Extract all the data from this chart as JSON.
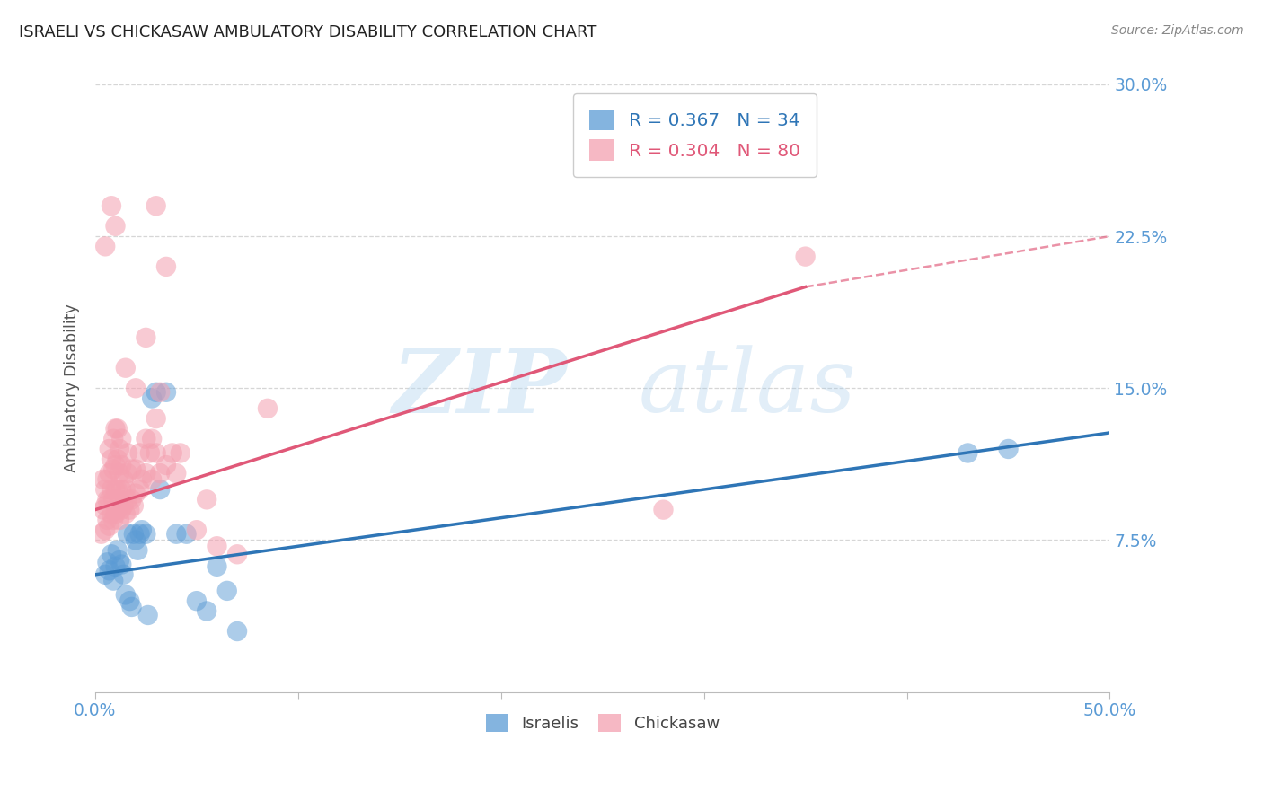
{
  "title": "ISRAELI VS CHICKASAW AMBULATORY DISABILITY CORRELATION CHART",
  "source": "Source: ZipAtlas.com",
  "ylabel": "Ambulatory Disability",
  "watermark_zip": "ZIP",
  "watermark_atlas": "atlas",
  "xlim": [
    0.0,
    0.5
  ],
  "ylim": [
    0.0,
    0.3
  ],
  "yticks": [
    0.075,
    0.15,
    0.225,
    0.3
  ],
  "ytick_labels": [
    "7.5%",
    "15.0%",
    "22.5%",
    "30.0%"
  ],
  "xticks": [
    0.0,
    0.1,
    0.2,
    0.3,
    0.4,
    0.5
  ],
  "xtick_labels": [
    "0.0%",
    "",
    "",
    "",
    "",
    "50.0%"
  ],
  "blue_R": 0.367,
  "blue_N": 34,
  "pink_R": 0.304,
  "pink_N": 80,
  "blue_color": "#5b9bd5",
  "pink_color": "#f4a0b0",
  "blue_line_color": "#2e75b6",
  "pink_line_color": "#e05878",
  "blue_scatter": [
    [
      0.005,
      0.058
    ],
    [
      0.006,
      0.064
    ],
    [
      0.007,
      0.06
    ],
    [
      0.008,
      0.068
    ],
    [
      0.009,
      0.055
    ],
    [
      0.01,
      0.062
    ],
    [
      0.011,
      0.07
    ],
    [
      0.012,
      0.065
    ],
    [
      0.013,
      0.063
    ],
    [
      0.014,
      0.058
    ],
    [
      0.015,
      0.048
    ],
    [
      0.016,
      0.078
    ],
    [
      0.017,
      0.045
    ],
    [
      0.018,
      0.042
    ],
    [
      0.019,
      0.078
    ],
    [
      0.02,
      0.075
    ],
    [
      0.021,
      0.07
    ],
    [
      0.022,
      0.078
    ],
    [
      0.023,
      0.08
    ],
    [
      0.025,
      0.078
    ],
    [
      0.026,
      0.038
    ],
    [
      0.028,
      0.145
    ],
    [
      0.03,
      0.148
    ],
    [
      0.032,
      0.1
    ],
    [
      0.035,
      0.148
    ],
    [
      0.04,
      0.078
    ],
    [
      0.045,
      0.078
    ],
    [
      0.05,
      0.045
    ],
    [
      0.055,
      0.04
    ],
    [
      0.06,
      0.062
    ],
    [
      0.065,
      0.05
    ],
    [
      0.07,
      0.03
    ],
    [
      0.43,
      0.118
    ],
    [
      0.45,
      0.12
    ]
  ],
  "pink_scatter": [
    [
      0.003,
      0.078
    ],
    [
      0.004,
      0.09
    ],
    [
      0.004,
      0.105
    ],
    [
      0.005,
      0.08
    ],
    [
      0.005,
      0.092
    ],
    [
      0.005,
      0.1
    ],
    [
      0.006,
      0.085
    ],
    [
      0.006,
      0.095
    ],
    [
      0.006,
      0.105
    ],
    [
      0.007,
      0.082
    ],
    [
      0.007,
      0.095
    ],
    [
      0.007,
      0.108
    ],
    [
      0.007,
      0.12
    ],
    [
      0.008,
      0.088
    ],
    [
      0.008,
      0.1
    ],
    [
      0.008,
      0.115
    ],
    [
      0.009,
      0.085
    ],
    [
      0.009,
      0.095
    ],
    [
      0.009,
      0.11
    ],
    [
      0.009,
      0.125
    ],
    [
      0.01,
      0.088
    ],
    [
      0.01,
      0.1
    ],
    [
      0.01,
      0.112
    ],
    [
      0.01,
      0.13
    ],
    [
      0.011,
      0.09
    ],
    [
      0.011,
      0.1
    ],
    [
      0.011,
      0.115
    ],
    [
      0.011,
      0.13
    ],
    [
      0.012,
      0.085
    ],
    [
      0.012,
      0.095
    ],
    [
      0.012,
      0.108
    ],
    [
      0.012,
      0.12
    ],
    [
      0.013,
      0.09
    ],
    [
      0.013,
      0.1
    ],
    [
      0.013,
      0.112
    ],
    [
      0.013,
      0.125
    ],
    [
      0.014,
      0.092
    ],
    [
      0.014,
      0.105
    ],
    [
      0.015,
      0.088
    ],
    [
      0.015,
      0.1
    ],
    [
      0.016,
      0.095
    ],
    [
      0.016,
      0.108
    ],
    [
      0.016,
      0.118
    ],
    [
      0.017,
      0.09
    ],
    [
      0.018,
      0.095
    ],
    [
      0.018,
      0.11
    ],
    [
      0.019,
      0.092
    ],
    [
      0.02,
      0.098
    ],
    [
      0.02,
      0.11
    ],
    [
      0.022,
      0.1
    ],
    [
      0.022,
      0.118
    ],
    [
      0.023,
      0.105
    ],
    [
      0.025,
      0.108
    ],
    [
      0.025,
      0.125
    ],
    [
      0.027,
      0.118
    ],
    [
      0.028,
      0.105
    ],
    [
      0.028,
      0.125
    ],
    [
      0.03,
      0.118
    ],
    [
      0.03,
      0.135
    ],
    [
      0.032,
      0.108
    ],
    [
      0.035,
      0.112
    ],
    [
      0.038,
      0.118
    ],
    [
      0.04,
      0.108
    ],
    [
      0.042,
      0.118
    ],
    [
      0.05,
      0.08
    ],
    [
      0.055,
      0.095
    ],
    [
      0.06,
      0.072
    ],
    [
      0.07,
      0.068
    ],
    [
      0.085,
      0.14
    ],
    [
      0.03,
      0.24
    ],
    [
      0.008,
      0.24
    ],
    [
      0.01,
      0.23
    ],
    [
      0.035,
      0.21
    ],
    [
      0.005,
      0.22
    ],
    [
      0.025,
      0.175
    ],
    [
      0.015,
      0.16
    ],
    [
      0.02,
      0.15
    ],
    [
      0.032,
      0.148
    ],
    [
      0.35,
      0.215
    ],
    [
      0.28,
      0.09
    ]
  ],
  "blue_line": {
    "x0": 0.0,
    "y0": 0.058,
    "x1": 0.5,
    "y1": 0.128
  },
  "pink_line": {
    "x0": 0.0,
    "y0": 0.09,
    "x1": 0.35,
    "y1": 0.2
  },
  "pink_dashed_line": {
    "x0": 0.35,
    "y0": 0.2,
    "x1": 0.5,
    "y1": 0.225
  },
  "background_color": "#ffffff",
  "grid_color": "#cccccc",
  "tick_color": "#5b9bd5",
  "title_color": "#222222",
  "source_color": "#888888"
}
